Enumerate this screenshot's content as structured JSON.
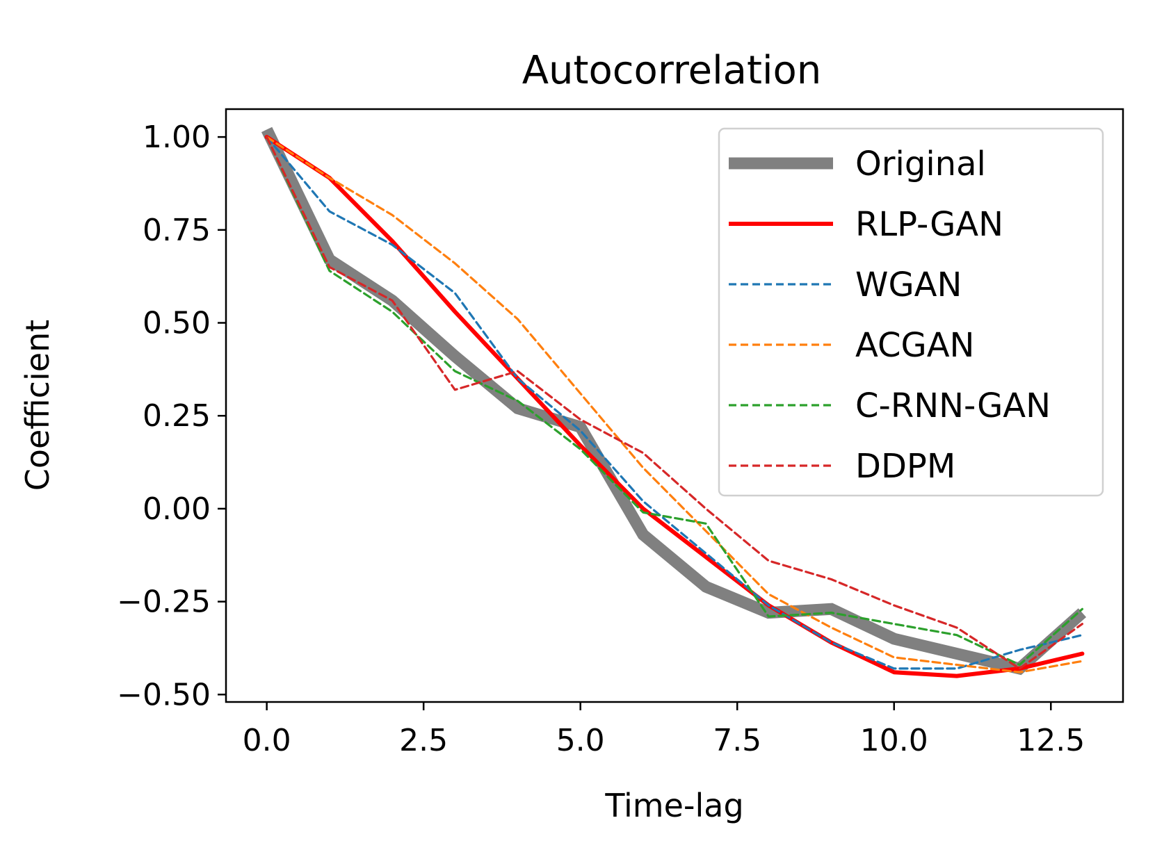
{
  "chart_data": {
    "type": "line",
    "title": "Autocorrelation",
    "xlabel": "Time-lag",
    "ylabel": "Coefficient",
    "xlim": [
      -0.65,
      13.65
    ],
    "ylim": [
      -0.52,
      1.075
    ],
    "xticks": [
      0.0,
      2.5,
      5.0,
      7.5,
      10.0,
      12.5
    ],
    "xtick_labels": [
      "0.0",
      "2.5",
      "5.0",
      "7.5",
      "10.0",
      "12.5"
    ],
    "yticks": [
      1.0,
      0.75,
      0.5,
      0.25,
      0.0,
      -0.25,
      -0.5
    ],
    "ytick_labels": [
      "1.00",
      "0.75",
      "0.50",
      "0.25",
      "0.00",
      "−0.25",
      "−0.50"
    ],
    "legend_position": "top-right",
    "x": [
      0,
      1,
      2,
      3,
      4,
      5,
      6,
      7,
      8,
      9,
      10,
      11,
      12,
      13
    ],
    "series": [
      {
        "name": "Original",
        "color": "#808080",
        "style": "thick",
        "values": [
          1.02,
          0.67,
          0.56,
          0.41,
          0.27,
          0.22,
          -0.07,
          -0.21,
          -0.28,
          -0.27,
          -0.35,
          -0.39,
          -0.43,
          -0.28
        ]
      },
      {
        "name": "RLP-GAN",
        "color": "#ff0000",
        "style": "solid",
        "values": [
          1.0,
          0.89,
          0.72,
          0.53,
          0.35,
          0.17,
          0.0,
          -0.13,
          -0.26,
          -0.36,
          -0.44,
          -0.45,
          -0.43,
          -0.39
        ]
      },
      {
        "name": "WGAN",
        "color": "#1f77b4",
        "style": "dashed",
        "values": [
          1.0,
          0.8,
          0.71,
          0.58,
          0.35,
          0.21,
          0.02,
          -0.12,
          -0.26,
          -0.36,
          -0.43,
          -0.43,
          -0.38,
          -0.34
        ]
      },
      {
        "name": "ACGAN",
        "color": "#ff7f0e",
        "style": "dashed",
        "values": [
          1.0,
          0.89,
          0.79,
          0.66,
          0.51,
          0.31,
          0.11,
          -0.06,
          -0.23,
          -0.32,
          -0.4,
          -0.42,
          -0.44,
          -0.41
        ]
      },
      {
        "name": "C-RNN-GAN",
        "color": "#2ca02c",
        "style": "dashed",
        "values": [
          1.0,
          0.64,
          0.53,
          0.37,
          0.29,
          0.16,
          -0.01,
          -0.04,
          -0.29,
          -0.28,
          -0.31,
          -0.34,
          -0.42,
          -0.27
        ]
      },
      {
        "name": "DDPM",
        "color": "#d62728",
        "style": "dashed",
        "values": [
          1.0,
          0.65,
          0.56,
          0.32,
          0.37,
          0.24,
          0.15,
          0.0,
          -0.14,
          -0.19,
          -0.26,
          -0.32,
          -0.43,
          -0.31
        ]
      }
    ]
  }
}
